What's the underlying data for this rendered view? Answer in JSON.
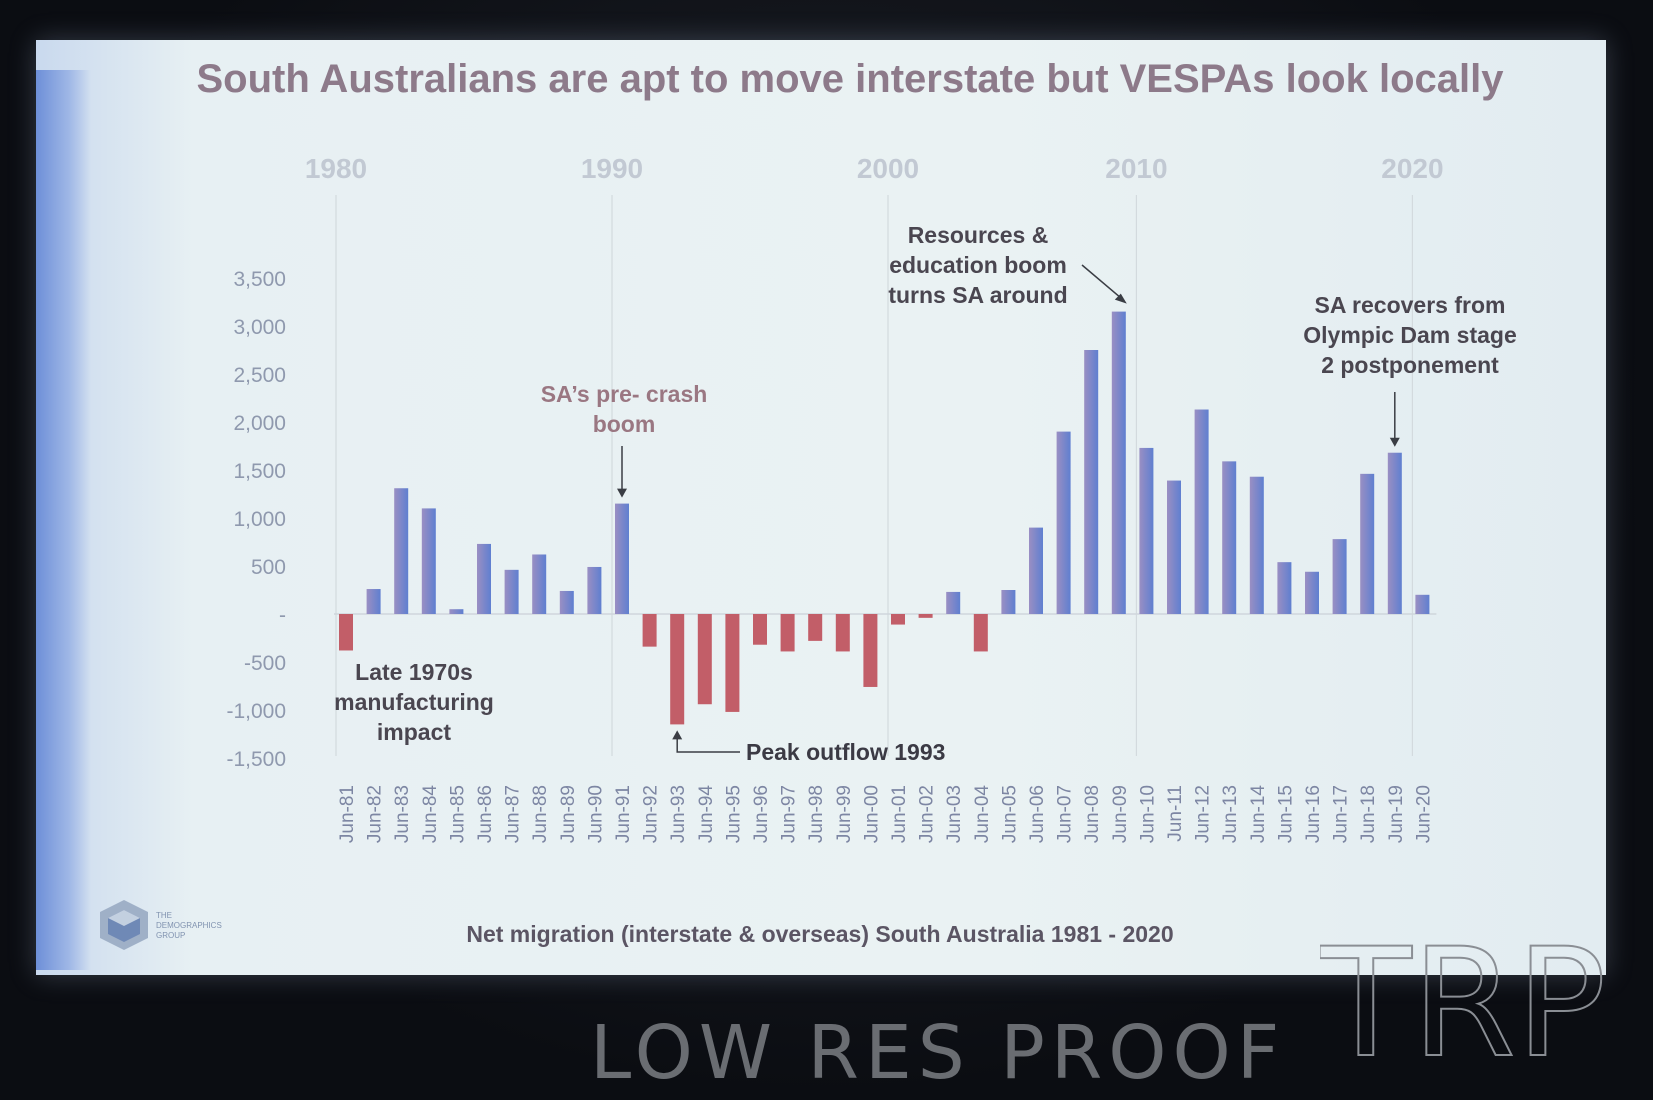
{
  "slide": {
    "title": "South Australians are apt to move interstate but VESPAs look locally",
    "footer": "Net migration (interstate & overseas) South Australia 1981 - 2020",
    "logo_text": [
      "THE",
      "DEMOGRAPHICS",
      "GROUP"
    ]
  },
  "watermark": {
    "text": "LOW RES PROOF",
    "logo": "TRP ©"
  },
  "chart_data": {
    "type": "bar",
    "categories": [
      "Jun-81",
      "Jun-82",
      "Jun-83",
      "Jun-84",
      "Jun-85",
      "Jun-86",
      "Jun-87",
      "Jun-88",
      "Jun-89",
      "Jun-90",
      "Jun-91",
      "Jun-92",
      "Jun-93",
      "Jun-94",
      "Jun-95",
      "Jun-96",
      "Jun-97",
      "Jun-98",
      "Jun-99",
      "Jun-00",
      "Jun-01",
      "Jun-02",
      "Jun-03",
      "Jun-04",
      "Jun-05",
      "Jun-06",
      "Jun-07",
      "Jun-08",
      "Jun-09",
      "Jun-10",
      "Jun-11",
      "Jun-12",
      "Jun-13",
      "Jun-14",
      "Jun-15",
      "Jun-16",
      "Jun-17",
      "Jun-18",
      "Jun-19",
      "Jun-20"
    ],
    "values": [
      -380,
      260,
      1310,
      1100,
      50,
      730,
      460,
      620,
      240,
      490,
      1150,
      -340,
      -1150,
      -940,
      -1020,
      -320,
      -390,
      -280,
      -390,
      -760,
      -110,
      -40,
      230,
      -390,
      250,
      900,
      1900,
      2750,
      3150,
      1730,
      1390,
      2130,
      1590,
      1430,
      540,
      440,
      780,
      1460,
      1680,
      200
    ],
    "colors": {
      "positive": "#7f8fcf",
      "negative": "#c25e68"
    },
    "ylim": [
      -1500,
      3500
    ],
    "y_ticks": [
      {
        "value": 3500,
        "label": "3,500"
      },
      {
        "value": 3000,
        "label": "3,000"
      },
      {
        "value": 2500,
        "label": "2,500"
      },
      {
        "value": 2000,
        "label": "2,000"
      },
      {
        "value": 1500,
        "label": "1,500"
      },
      {
        "value": 1000,
        "label": "1,000"
      },
      {
        "value": 500,
        "label": "500"
      },
      {
        "value": 0,
        "label": "-"
      },
      {
        "value": -500,
        "label": "-500"
      },
      {
        "value": -1000,
        "label": "-1,000"
      },
      {
        "value": -1500,
        "label": "-1,500"
      }
    ],
    "decades": [
      {
        "label": "1980",
        "at": "Jun-81"
      },
      {
        "label": "1990",
        "at": "Jun-91"
      },
      {
        "label": "2000",
        "at": "Jun-01"
      },
      {
        "label": "2010",
        "at": "Jun-10"
      },
      {
        "label": "2020",
        "at": "Jun-20"
      }
    ],
    "annotations": [
      {
        "lines": [
          "Late 1970s",
          "manufacturing",
          "impact"
        ],
        "target": "Jun-81"
      },
      {
        "lines": [
          "SA’s pre- crash",
          "boom"
        ],
        "target": "Jun-91"
      },
      {
        "lines": [
          "Peak outflow 1993"
        ],
        "target": "Jun-93"
      },
      {
        "lines": [
          "Resources &",
          "education boom",
          "turns SA around"
        ],
        "target": "Jun-09"
      },
      {
        "lines": [
          "SA recovers from",
          "Olympic Dam stage",
          "2 postponement"
        ],
        "target": "Jun-19"
      }
    ],
    "xlabel": "",
    "ylabel": "",
    "grid": false,
    "legend": "none"
  }
}
